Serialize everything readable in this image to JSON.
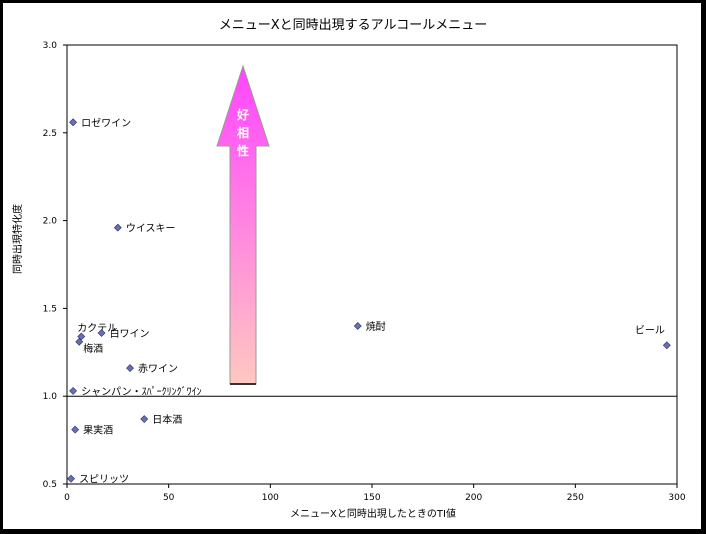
{
  "chart_data": {
    "type": "scatter",
    "title": "メニューXと同時出現するアルコールメニュー",
    "xlabel": "メニューXと同時出現したときのTI値",
    "ylabel": "同時出現特化度",
    "xlim": [
      0,
      300
    ],
    "ylim": [
      0.5,
      3.0
    ],
    "xticks": [
      0,
      50,
      100,
      150,
      200,
      250,
      300
    ],
    "yticks": [
      0.5,
      1.0,
      1.5,
      2.0,
      2.5,
      3.0
    ],
    "xtick_labels": [
      "0",
      "50",
      "100",
      "150",
      "200",
      "250",
      "300"
    ],
    "ytick_labels": [
      "0.5",
      "1.0",
      "1.5",
      "2.0",
      "2.5",
      "3.0"
    ],
    "grid": false,
    "reference_line_y": 1.0,
    "marker_color": "#6a6fb5",
    "points": [
      {
        "label": "ロゼワイン",
        "x": 3,
        "y": 2.56
      },
      {
        "label": "ウイスキー",
        "x": 25,
        "y": 1.96
      },
      {
        "label": "カクテル",
        "x": 7,
        "y": 1.34
      },
      {
        "label": "白ワイン",
        "x": 17,
        "y": 1.36
      },
      {
        "label": "梅酒",
        "x": 6,
        "y": 1.31
      },
      {
        "label": "焼酎",
        "x": 143,
        "y": 1.4
      },
      {
        "label": "ビール",
        "x": 295,
        "y": 1.29
      },
      {
        "label": "赤ワイン",
        "x": 31,
        "y": 1.16
      },
      {
        "label": "シャンパン・ｽﾊﾟｰｸﾘﾝｸﾞﾜｲﾝ",
        "x": 3,
        "y": 1.03
      },
      {
        "label": "日本酒",
        "x": 38,
        "y": 0.87
      },
      {
        "label": "果実酒",
        "x": 4,
        "y": 0.81
      },
      {
        "label": "スピリッツ",
        "x": 2,
        "y": 0.53
      }
    ],
    "annotation": {
      "text": [
        "好",
        "相",
        "性"
      ],
      "direction": "up",
      "gradient_top": "#ff44ff",
      "gradient_bottom": "#ffc8c0"
    }
  }
}
